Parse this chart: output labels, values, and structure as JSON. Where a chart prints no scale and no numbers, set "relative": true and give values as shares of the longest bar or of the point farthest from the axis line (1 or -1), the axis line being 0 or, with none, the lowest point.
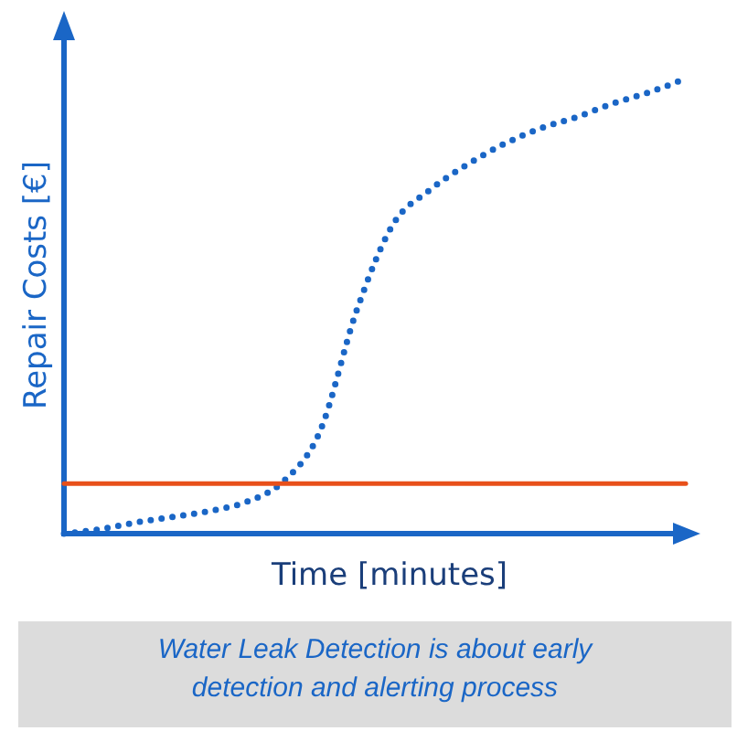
{
  "chart_data": {
    "type": "line",
    "relative": true,
    "xlabel": "Time [minutes]",
    "ylabel": "Repair Costs [€]",
    "categories": [
      null,
      null,
      null,
      null,
      null,
      null,
      null,
      null,
      null,
      null,
      null,
      null,
      null,
      null,
      null,
      null,
      null,
      null
    ],
    "series": [
      {
        "color": "#1a66c6",
        "line_style": "dotted",
        "values": [
          0,
          0.01,
          0.025,
          0.037,
          0.05,
          0.07,
          0.115,
          0.225,
          0.49,
          0.68,
          0.755,
          0.81,
          0.855,
          0.89,
          0.915,
          0.945,
          0.97,
          1.0
        ]
      },
      {
        "color": "#e8501a",
        "line_style": "solid",
        "values": [
          0.11,
          0.11,
          0.11,
          0.11,
          0.11,
          0.11,
          0.11,
          0.11,
          0.11,
          0.11,
          0.11,
          0.11,
          0.11,
          0.11,
          0.11,
          0.11,
          0.11,
          0.11
        ]
      }
    ],
    "annotations": [
      "Water Leak Detection is about early detection and alerting process"
    ]
  }
}
